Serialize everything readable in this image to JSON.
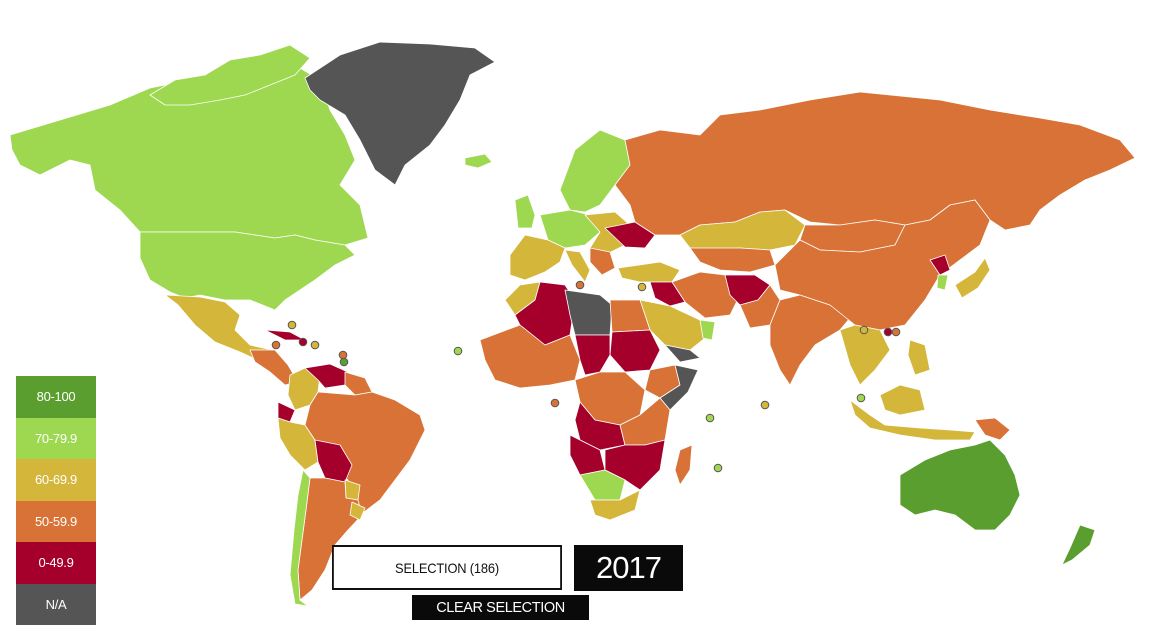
{
  "legend": {
    "items": [
      {
        "label": "80-100",
        "color": "#5a9e2f"
      },
      {
        "label": "70-79.9",
        "color": "#9ed850"
      },
      {
        "label": "60-69.9",
        "color": "#d4b63a"
      },
      {
        "label": "50-59.9",
        "color": "#d87236"
      },
      {
        "label": "0-49.9",
        "color": "#a5002c"
      },
      {
        "label": "N/A",
        "color": "#555555"
      }
    ]
  },
  "selection": {
    "label": "SELECTION (186)"
  },
  "year": {
    "label": "2017"
  },
  "clear_button": {
    "label": "CLEAR SELECTION"
  },
  "map": {
    "palette": {
      "g": "#5a9e2f",
      "l": "#9ed850",
      "y": "#d4b63a",
      "o": "#d87236",
      "r": "#a5002c",
      "n": "#555555"
    },
    "small_markers": [
      "y",
      "o",
      "r",
      "y",
      "o",
      "g",
      "l",
      "l",
      "y",
      "r",
      "o",
      "o",
      "o",
      "y",
      "y",
      "l",
      "l"
    ]
  }
}
